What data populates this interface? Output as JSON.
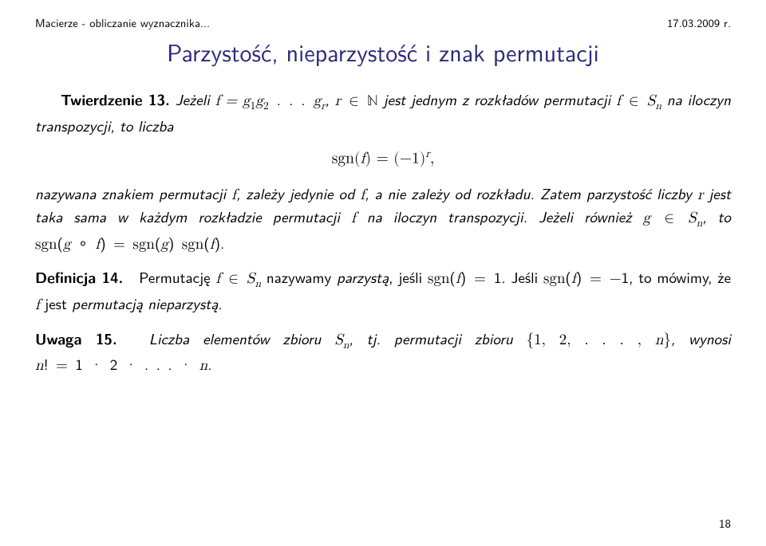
{
  "header": {
    "left": "Macierze - obliczanie wyznacznika...",
    "right": "17.03.2009 r."
  },
  "title": "Parzystość, nieparzystość i znak permutacji",
  "thm13": {
    "label": "Twierdzenie 13.",
    "lead": "Jeżeli ",
    "mid1": ", ",
    "mid2": " jest jednym z rozkładów permutacji ",
    "mid3": " na iloczyn transpozycji, to liczba"
  },
  "display1": "sgn(f) = (−1)",
  "display1_exp": "r",
  "display1_tail": ",",
  "thm13b": {
    "p1a": "nazywana ",
    "p1b": "znakiem permutacji ",
    "p1c": ", zależy jedynie od ",
    "p1d": ", a nie zależy od rozkładu. Zatem parzystość liczby ",
    "p1e": " jest taka sama w każdym rozkładzie permutacji ",
    "p1f": " na iloczyn transpozycji. Jeżeli również ",
    "p1g": ", to "
  },
  "def14": {
    "label": "Definicja 14.",
    "t1": "Permutację ",
    "t2": " nazywamy ",
    "t3": "parzystą",
    "t4": ", jeśli ",
    "t5": ". Jeśli ",
    "t6": ", to mówimy, że ",
    "t7": " jest ",
    "t8": "permutacją nieparzystą",
    "t9": "."
  },
  "rem15": {
    "label": "Uwaga 15.",
    "t1": "Liczba elementów zbioru ",
    "t2": ", tj. permutacji zbioru ",
    "t3": ", wynosi "
  },
  "pagenum": "18"
}
